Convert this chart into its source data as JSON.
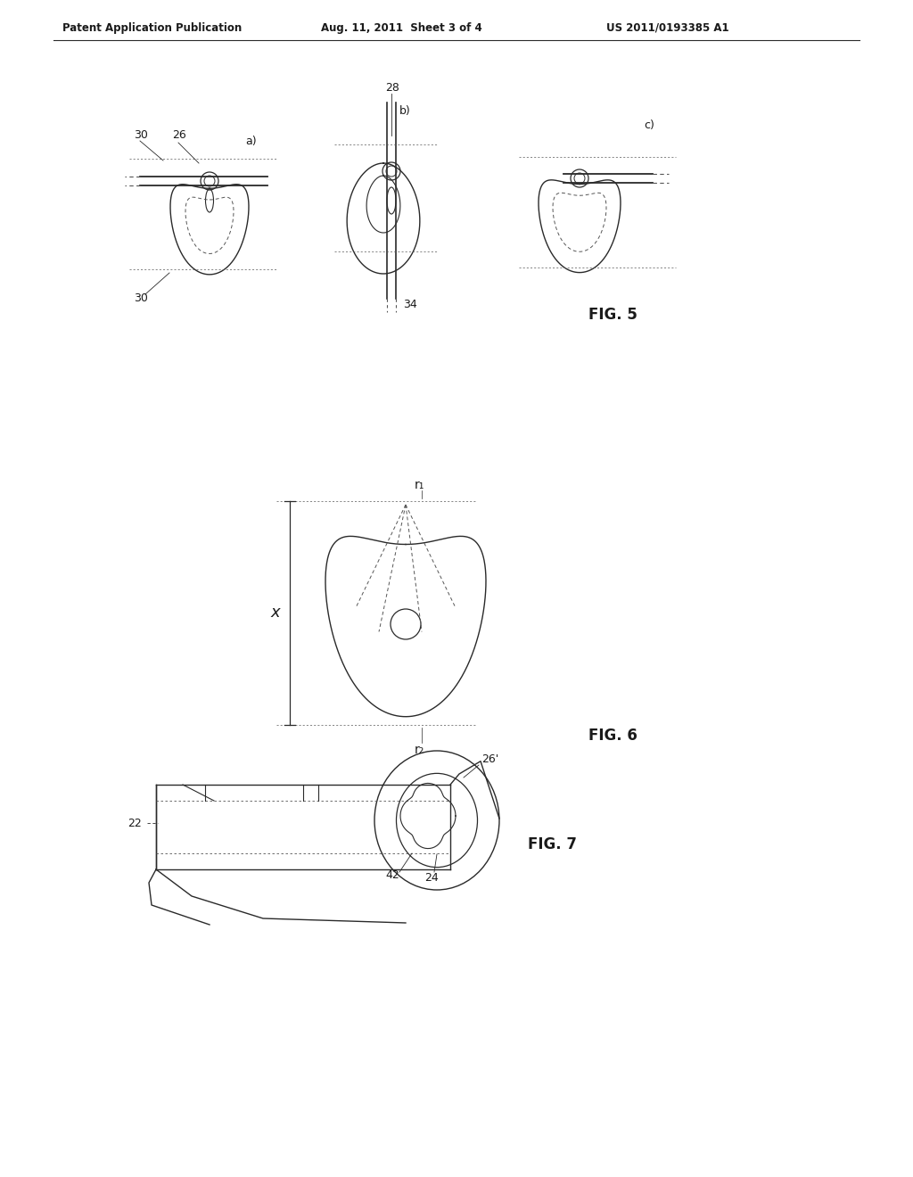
{
  "bg_color": "#ffffff",
  "header_text": "Patent Application Publication",
  "header_date": "Aug. 11, 2011  Sheet 3 of 4",
  "header_patent": "US 2011/0193385 A1",
  "fig5_label": "FIG. 5",
  "fig6_label": "FIG. 6",
  "fig7_label": "FIG. 7",
  "line_color": "#2a2a2a",
  "dashed_color": "#555555",
  "text_color": "#1a1a1a"
}
